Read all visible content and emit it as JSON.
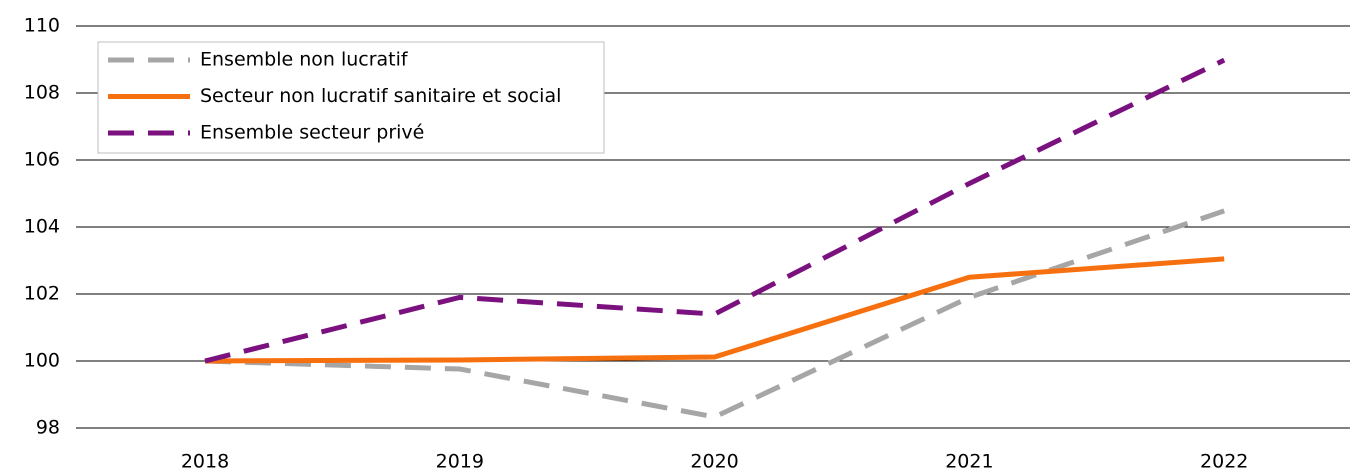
{
  "chart_data": {
    "type": "line",
    "categories": [
      "2018",
      "2019",
      "2020",
      "2021",
      "2022"
    ],
    "series": [
      {
        "name": "Ensemble non lucratif",
        "color": "#a6a6a6",
        "dashed": true,
        "values": [
          100,
          99.76,
          98.33,
          101.9,
          104.48
        ]
      },
      {
        "name": "Secteur non lucratif sanitaire et social",
        "color": "#f7700f",
        "dashed": false,
        "values": [
          100,
          100.03,
          100.12,
          102.5,
          103.05
        ]
      },
      {
        "name": "Ensemble secteur privé",
        "color": "#7b117f",
        "dashed": true,
        "values": [
          100,
          101.9,
          101.4,
          105.3,
          108.98
        ]
      }
    ],
    "ylim": [
      98,
      110
    ],
    "yticks": [
      98,
      100,
      102,
      104,
      106,
      108,
      110
    ],
    "grid": true,
    "legend": "upper left"
  }
}
